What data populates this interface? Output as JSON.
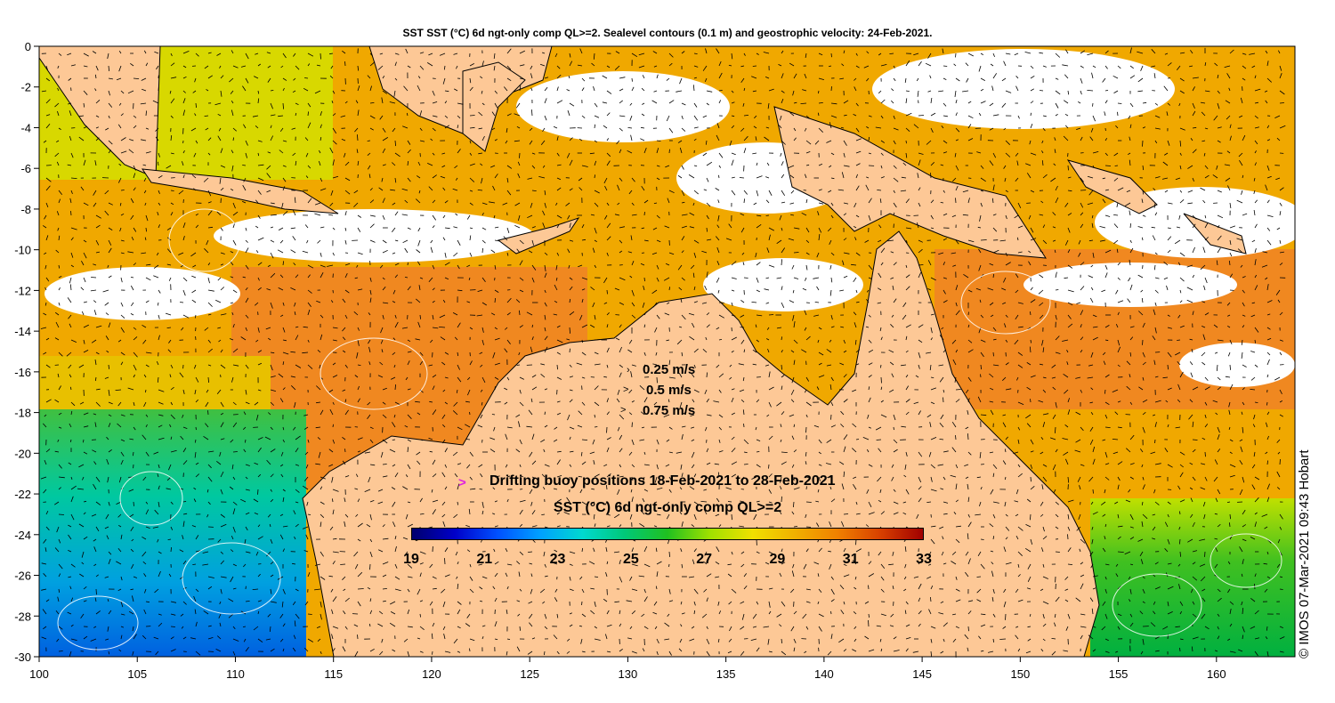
{
  "title": "SST SST (°C) 6d ngt-only comp QL>=2. Sealevel contours (0.1 m) and geostrophic velocity: 24-Feb-2021.",
  "axes": {
    "x_ticks": [
      "100",
      "105",
      "110",
      "115",
      "120",
      "125",
      "130",
      "135",
      "140",
      "145",
      "150",
      "155",
      "160"
    ],
    "y_ticks": [
      "0",
      "-2",
      "-4",
      "-6",
      "-8",
      "-10",
      "-12",
      "-14",
      "-16",
      "-18",
      "-20",
      "-22",
      "-24",
      "-26",
      "-28",
      "-30"
    ]
  },
  "velocity_legend": {
    "items": [
      {
        "label": "0.25 m/s"
      },
      {
        "label": "0.5 m/s"
      },
      {
        "label": "0.75 m/s"
      }
    ]
  },
  "buoy_legend": {
    "marker": ">",
    "label": "Drifting buoy positions 18-Feb-2021 to 28-Feb-2021",
    "color": "#e020e0"
  },
  "colorbar": {
    "title": "SST (°C) 6d ngt-only comp QL>=2",
    "ticks": [
      "19",
      "21",
      "23",
      "25",
      "27",
      "29",
      "31",
      "33"
    ],
    "colors": [
      "#00006e",
      "#0000c8",
      "#0050ff",
      "#00a0ff",
      "#00d8d0",
      "#00c878",
      "#20c020",
      "#a0e000",
      "#f0e000",
      "#f0b000",
      "#f08000",
      "#d84000",
      "#a00000"
    ]
  },
  "credit": "© IMOS 07-Mar-2021 09:43 Hobart",
  "colors": {
    "land": "#fdc896",
    "cloud": "#ffffff"
  }
}
